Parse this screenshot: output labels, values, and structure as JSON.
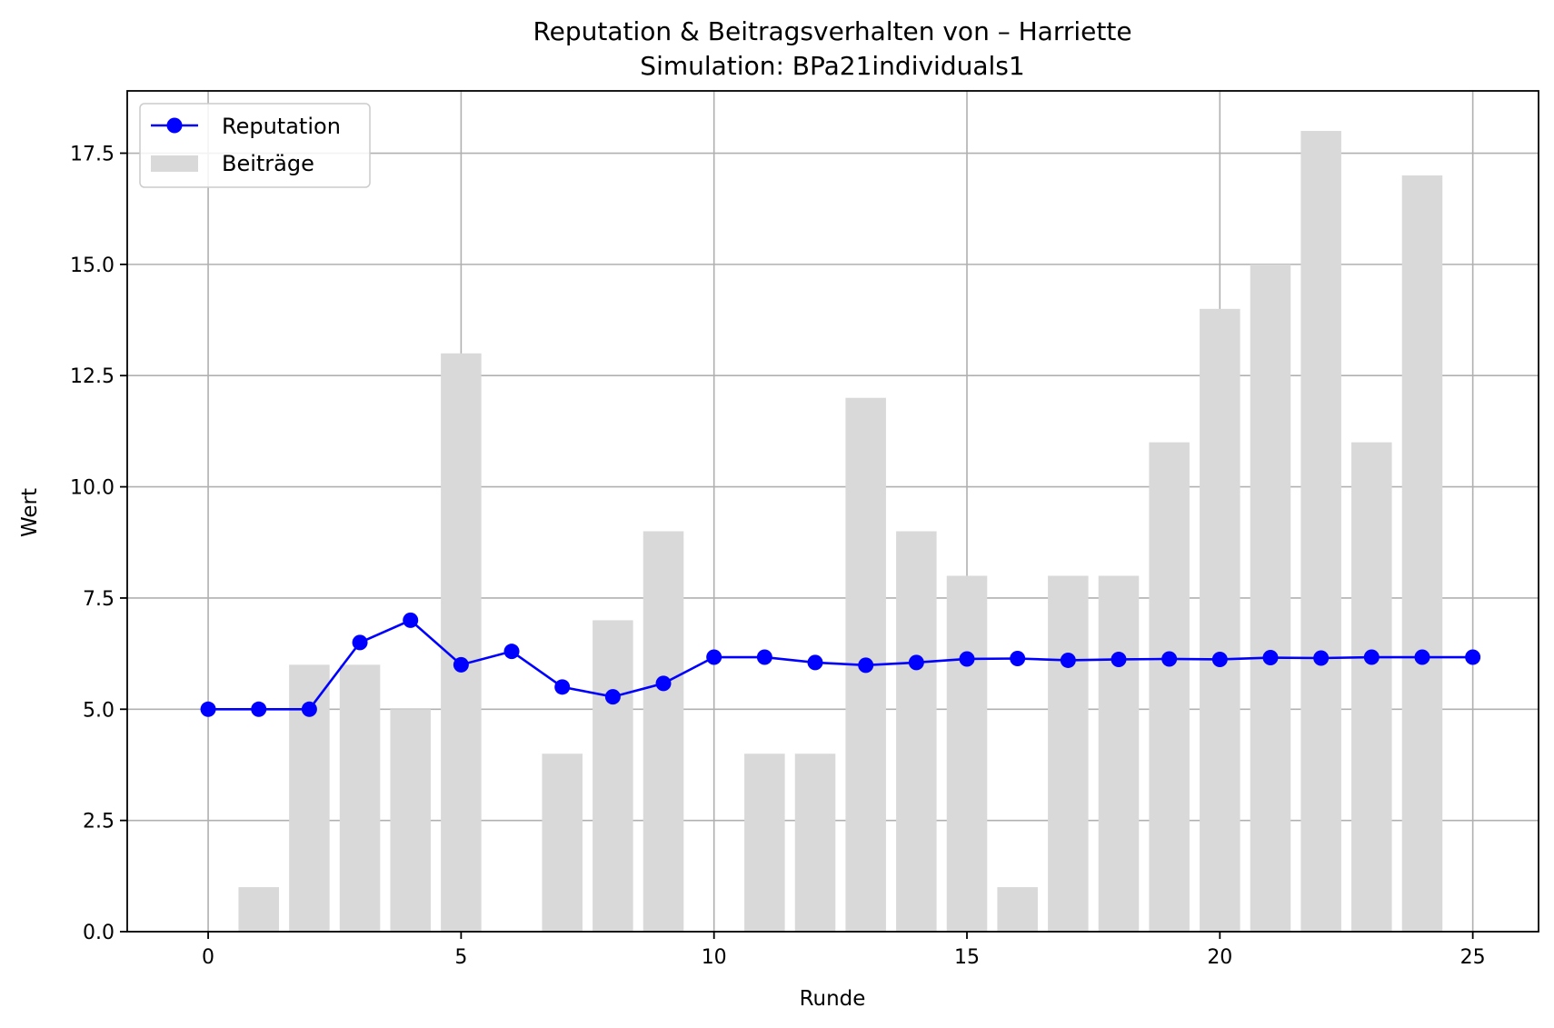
{
  "chart_data": {
    "type": "bar+line",
    "title_line1": "Reputation & Beitragsverhalten von – Harriette",
    "title_line2": "Simulation: BPa21individuals1",
    "xlabel": "Runde",
    "ylabel": "Wert",
    "xlim": [
      -1.6,
      26.3
    ],
    "ylim": [
      0,
      18.9
    ],
    "x_ticks": [
      0,
      5,
      10,
      15,
      20,
      25
    ],
    "x_tick_labels": [
      "0",
      "5",
      "10",
      "15",
      "20",
      "25"
    ],
    "y_ticks": [
      0,
      2.5,
      5,
      7.5,
      10,
      12.5,
      15,
      17.5
    ],
    "y_tick_labels": [
      "0.0",
      "2.5",
      "5.0",
      "7.5",
      "10.0",
      "12.5",
      "15.0",
      "17.5"
    ],
    "grid": true,
    "legend_position": "top-left",
    "x": [
      0,
      1,
      2,
      3,
      4,
      5,
      6,
      7,
      8,
      9,
      10,
      11,
      12,
      13,
      14,
      15,
      16,
      17,
      18,
      19,
      20,
      21,
      22,
      23,
      24,
      25
    ],
    "series": [
      {
        "name": "Reputation",
        "kind": "line",
        "color": "#0000ff",
        "values": [
          5.0,
          5.0,
          5.0,
          6.5,
          7.0,
          6.0,
          6.3,
          5.5,
          5.28,
          5.58,
          6.17,
          6.17,
          6.05,
          5.99,
          6.05,
          6.13,
          6.14,
          6.1,
          6.12,
          6.13,
          6.12,
          6.16,
          6.15,
          6.17,
          6.17,
          6.17
        ]
      },
      {
        "name": "Beiträge",
        "kind": "bar",
        "color": "#d9d9d9",
        "values": [
          null,
          1,
          6,
          6,
          5,
          13,
          null,
          4,
          7,
          9,
          null,
          4,
          4,
          12,
          9,
          8,
          1,
          8,
          8,
          11,
          14,
          15,
          18,
          11,
          17,
          null
        ]
      }
    ]
  }
}
